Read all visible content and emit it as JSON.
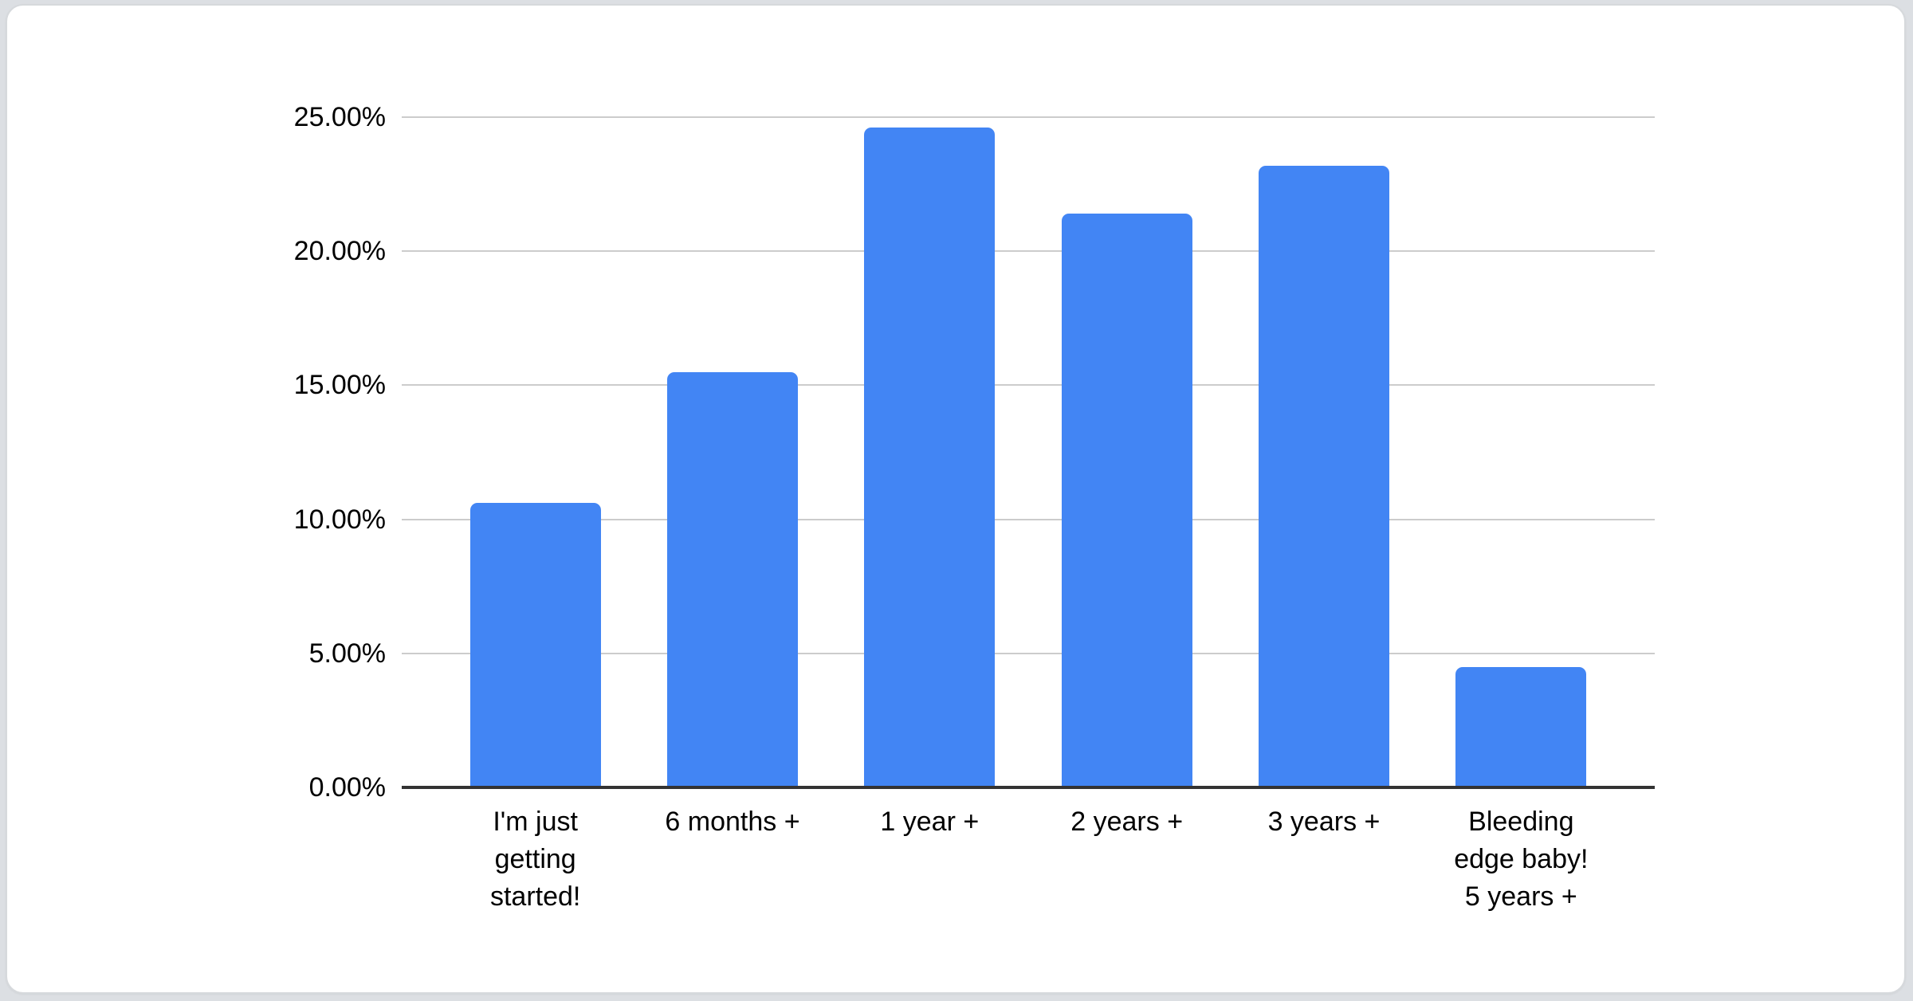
{
  "chart_data": {
    "type": "bar",
    "title": "",
    "xlabel": "",
    "ylabel": "",
    "categories": [
      "I'm just getting started!",
      "6 months +",
      "1 year +",
      "2 years +",
      "3 years +",
      "Bleeding edge baby! 5 years +"
    ],
    "category_lines": [
      [
        "I'm just",
        "getting",
        "started!"
      ],
      [
        "6 months +"
      ],
      [
        "1 year +"
      ],
      [
        "2 years +"
      ],
      [
        "3 years +"
      ],
      [
        "Bleeding",
        "edge baby!",
        "5 years +"
      ]
    ],
    "values": [
      10.6,
      15.5,
      24.6,
      21.4,
      23.2,
      4.5
    ],
    "value_unit": "percent",
    "ylim": [
      0,
      25
    ],
    "y_ticks": {
      "values": [
        0,
        5,
        10,
        15,
        20,
        25
      ],
      "labels": [
        "0.00%",
        "5.00%",
        "10.00%",
        "15.00%",
        "20.00%",
        "25.00%"
      ]
    },
    "grid": true,
    "legend": "none",
    "colors": {
      "bar": "#4285f4",
      "gridline": "#cccccc",
      "axis_line": "#333333",
      "label_text": "#000000",
      "card_background": "#ffffff",
      "page_background": "#dcdfe3",
      "card_border": "#d6d9dc"
    }
  }
}
